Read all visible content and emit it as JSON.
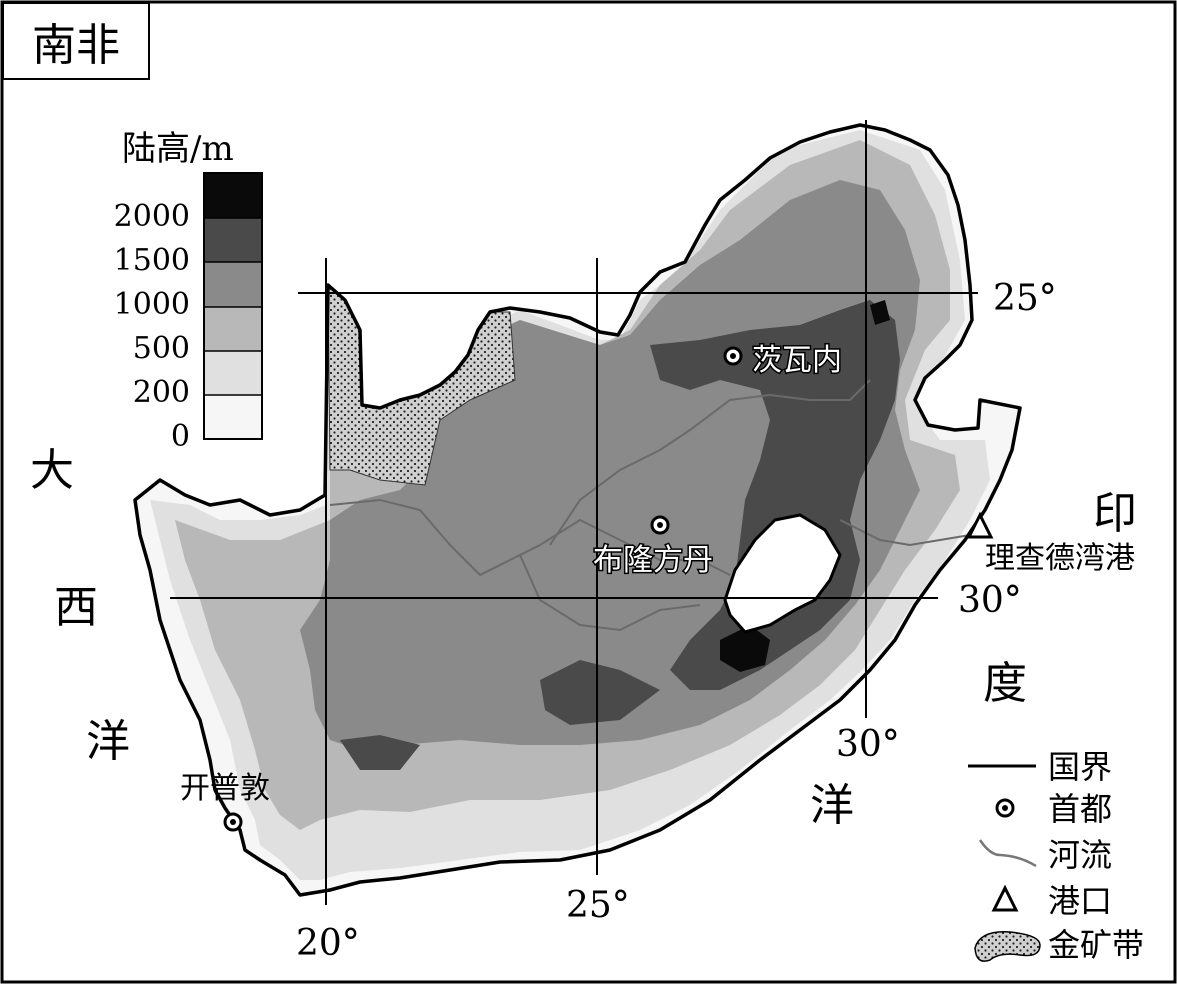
{
  "title": "南非",
  "legend": {
    "heading": "陆高/m",
    "levels": [
      {
        "label": "2000",
        "color": "#0a0a0a"
      },
      {
        "label": "1500",
        "color": "#4a4a4a"
      },
      {
        "label": "1000",
        "color": "#8a8a8a"
      },
      {
        "label": "500",
        "color": "#b8b8b8"
      },
      {
        "label": "200",
        "color": "#e0e0e0"
      },
      {
        "label": "0",
        "color": "#f6f6f6"
      }
    ]
  },
  "ocean_labels": {
    "atlantic": [
      "大",
      "西",
      "洋"
    ],
    "indian": [
      "印",
      "度",
      "洋"
    ]
  },
  "grid_labels": {
    "lat_25": "25°",
    "lat_30": "30°",
    "lon_20": "20°",
    "lon_25": "25°",
    "lon_30": "30°"
  },
  "places": {
    "pretoria": "茨瓦内",
    "bloemfontein": "布隆方丹",
    "cape_town": "开普敦",
    "richards_bay": "理查德湾港"
  },
  "key": {
    "border": "国界",
    "capital": "首都",
    "river": "河流",
    "port": "港口",
    "gold": "金矿带"
  }
}
